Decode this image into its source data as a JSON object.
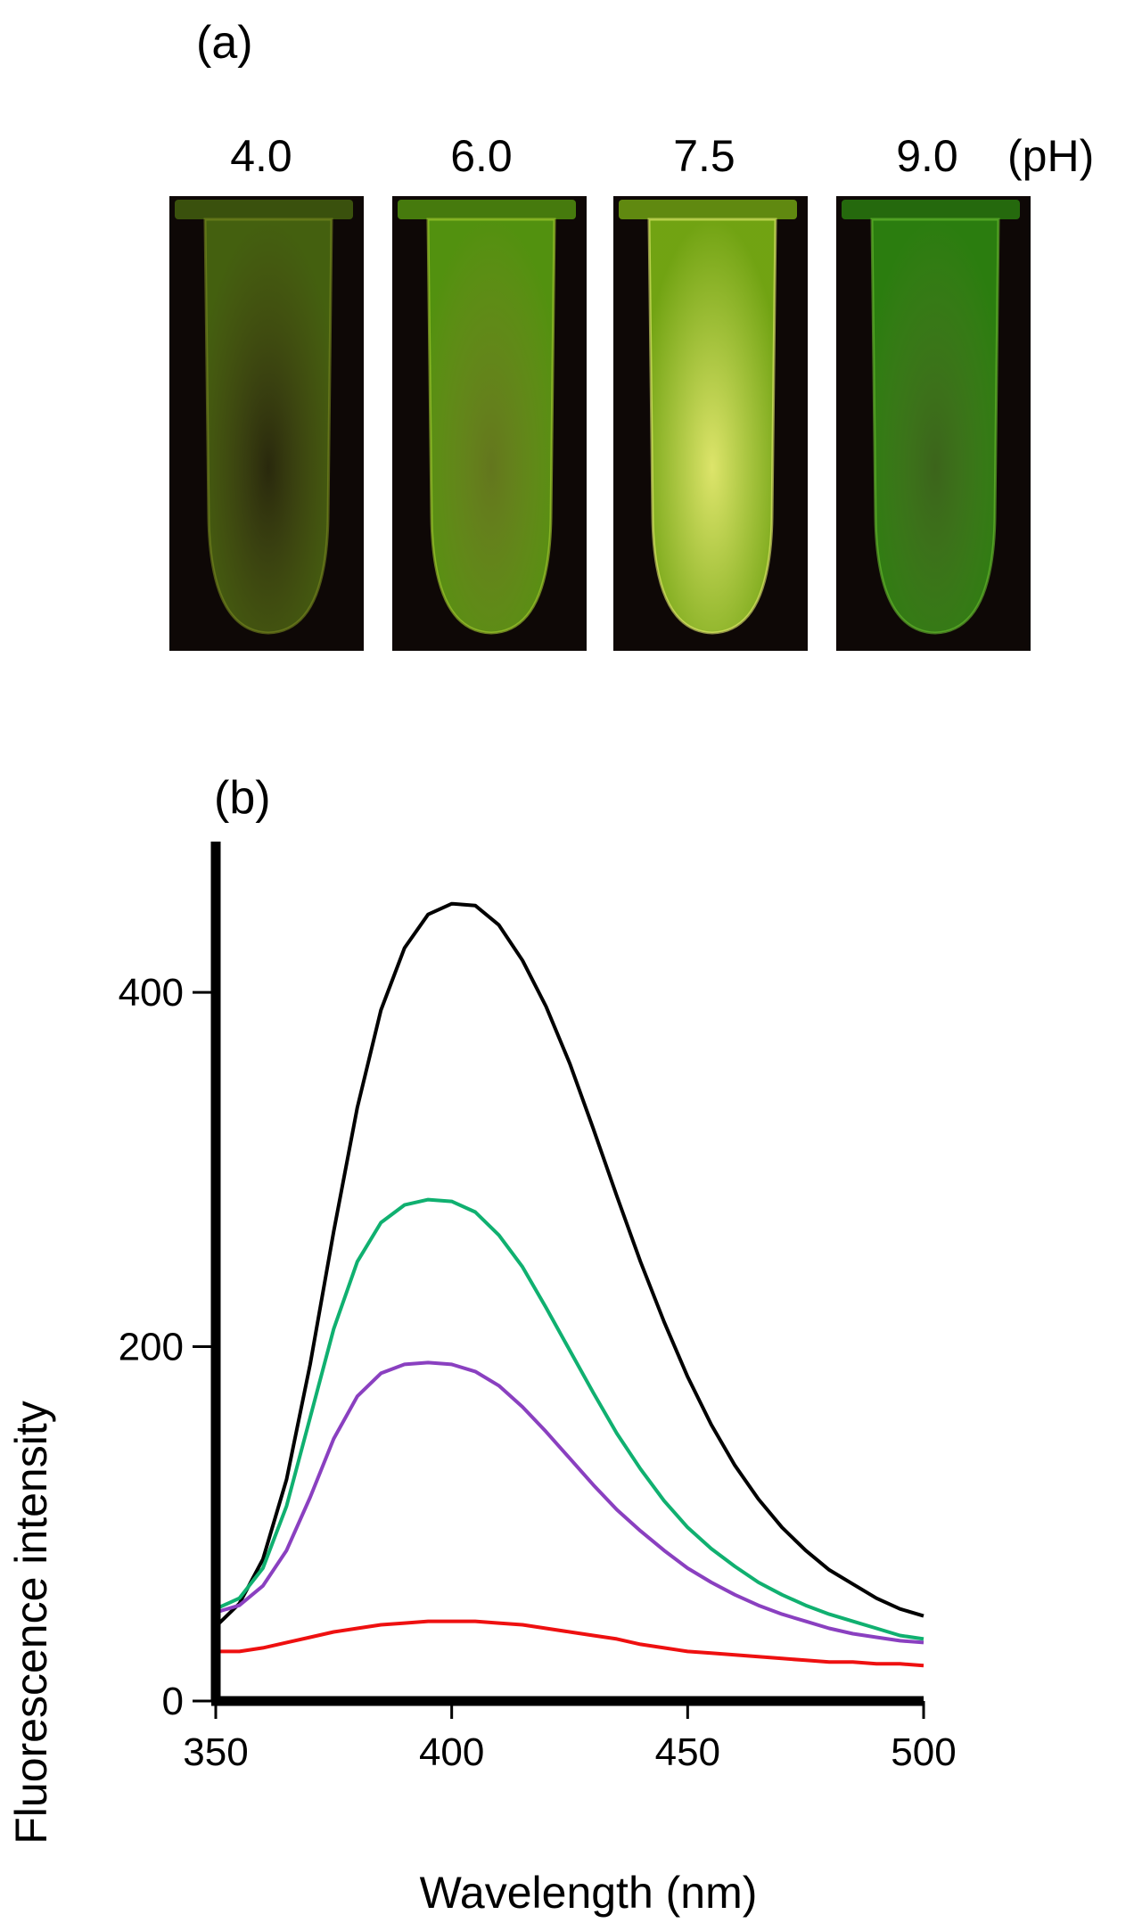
{
  "panel_a": {
    "label": "(a)",
    "unit_label": "(pH)",
    "samples": [
      {
        "ph": "4.0",
        "glow": "#4a6a10",
        "highlight": "#7a8a20",
        "intensity": 0.25
      },
      {
        "ph": "6.0",
        "glow": "#5aa010",
        "highlight": "#a8d030",
        "intensity": 0.55
      },
      {
        "ph": "7.5",
        "glow": "#7cb414",
        "highlight": "#e8f070",
        "intensity": 0.95
      },
      {
        "ph": "9.0",
        "glow": "#2e8a10",
        "highlight": "#6ac030",
        "intensity": 0.5
      }
    ]
  },
  "panel_b": {
    "label": "(b)"
  },
  "chart_data": {
    "type": "line",
    "xlabel": "Wavelength (nm)",
    "ylabel": "Fluorescence intensity",
    "xlim": [
      350,
      500
    ],
    "ylim": [
      0,
      470
    ],
    "xticks": [
      350,
      400,
      450,
      500
    ],
    "yticks": [
      0,
      200,
      400
    ],
    "grid": false,
    "legend": "none",
    "x": [
      350,
      355,
      360,
      365,
      370,
      375,
      380,
      385,
      390,
      395,
      400,
      405,
      410,
      415,
      420,
      425,
      430,
      435,
      440,
      445,
      450,
      455,
      460,
      465,
      470,
      475,
      480,
      485,
      490,
      495,
      500
    ],
    "series": [
      {
        "color": "#000000",
        "values": [
          42,
          55,
          80,
          125,
          190,
          265,
          335,
          390,
          425,
          444,
          450,
          449,
          438,
          418,
          392,
          360,
          323,
          285,
          248,
          214,
          183,
          156,
          133,
          114,
          98,
          85,
          74,
          66,
          58,
          52,
          48
        ]
      },
      {
        "color": "#10b070",
        "values": [
          52,
          58,
          75,
          110,
          160,
          210,
          248,
          270,
          280,
          283,
          282,
          276,
          263,
          245,
          222,
          198,
          174,
          151,
          131,
          113,
          98,
          86,
          76,
          67,
          60,
          54,
          49,
          45,
          41,
          37,
          35
        ]
      },
      {
        "color": "#8a40c0",
        "values": [
          50,
          54,
          65,
          85,
          115,
          148,
          172,
          185,
          190,
          191,
          190,
          186,
          178,
          166,
          152,
          137,
          122,
          108,
          96,
          85,
          75,
          67,
          60,
          54,
          49,
          45,
          41,
          38,
          36,
          34,
          33
        ]
      },
      {
        "color": "#ee1010",
        "values": [
          28,
          28,
          30,
          33,
          36,
          39,
          41,
          43,
          44,
          45,
          45,
          45,
          44,
          43,
          41,
          39,
          37,
          35,
          32,
          30,
          28,
          27,
          26,
          25,
          24,
          23,
          22,
          22,
          21,
          21,
          20
        ]
      }
    ]
  }
}
